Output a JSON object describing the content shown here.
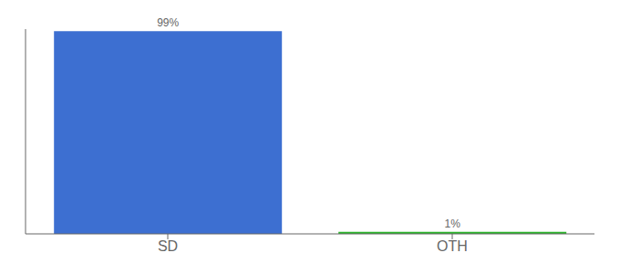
{
  "chart_data": {
    "type": "bar",
    "categories": [
      "SD",
      "OTH"
    ],
    "values": [
      99,
      1
    ],
    "colors": [
      "#3d6fd1",
      "#2db52d"
    ],
    "value_labels": [
      "99%",
      "1%"
    ],
    "data_labels": true,
    "ylim": [
      0,
      100
    ],
    "tick_labels": "x"
  }
}
